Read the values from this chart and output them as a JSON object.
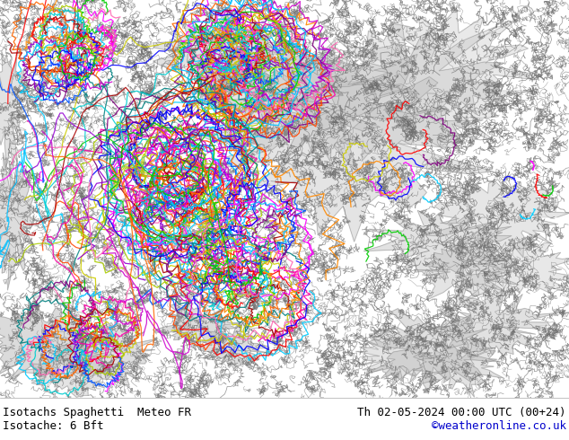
{
  "title_left": "Isotachs Spaghetti  Meteo FR",
  "title_right": "Th 02-05-2024 00:00 UTC (00+24)",
  "subtitle_left": "Isotache: 6 Bft",
  "subtitle_right": "©weatheronline.co.uk",
  "subtitle_right_color": "#0000cc",
  "background_color": "#c8eab0",
  "gray_contour_color": "#808080",
  "gray_shade_color": "#c0c0c0",
  "bottom_bar_color": "#ffffff",
  "text_color": "#000000",
  "fig_width": 6.34,
  "fig_height": 4.9,
  "dpi": 100,
  "font_size_title": 9,
  "font_size_subtitle": 9,
  "spaghetti_colors": [
    "#ff00ff",
    "#00ccff",
    "#ff0000",
    "#0000ff",
    "#00cc00",
    "#ff8800",
    "#cccc00",
    "#800080",
    "#008080",
    "#ff69b4",
    "#00ced1",
    "#ff4500",
    "#9400d3",
    "#00bfff",
    "#aacc00",
    "#ff00aa",
    "#aa0000",
    "#0055ff",
    "#ff6600",
    "#cc00cc"
  ]
}
